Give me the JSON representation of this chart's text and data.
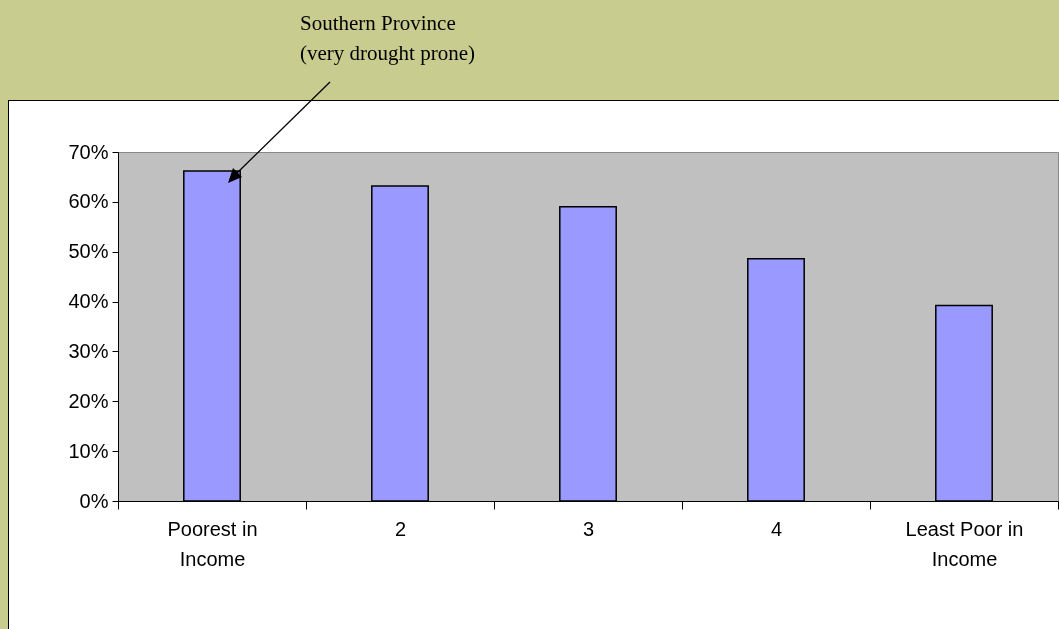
{
  "chart_data": {
    "type": "bar",
    "categories": [
      "Poorest in Income",
      "2",
      "3",
      "4",
      "Least Poor in Income"
    ],
    "values": [
      66.2,
      63.2,
      59.0,
      48.6,
      39.2
    ],
    "color": "#9999ff",
    "ylim": [
      0,
      70
    ],
    "yticks": [
      {
        "value": 0,
        "label": "0%"
      },
      {
        "value": 10,
        "label": "10%"
      },
      {
        "value": 20,
        "label": "20%"
      },
      {
        "value": 30,
        "label": "30%"
      },
      {
        "value": 40,
        "label": "40%"
      },
      {
        "value": 50,
        "label": "50%"
      },
      {
        "value": 60,
        "label": "60%"
      },
      {
        "value": 70,
        "label": "70%"
      }
    ],
    "grid": false,
    "annotations": [
      "Southern Province\n(very drought prone)"
    ]
  }
}
